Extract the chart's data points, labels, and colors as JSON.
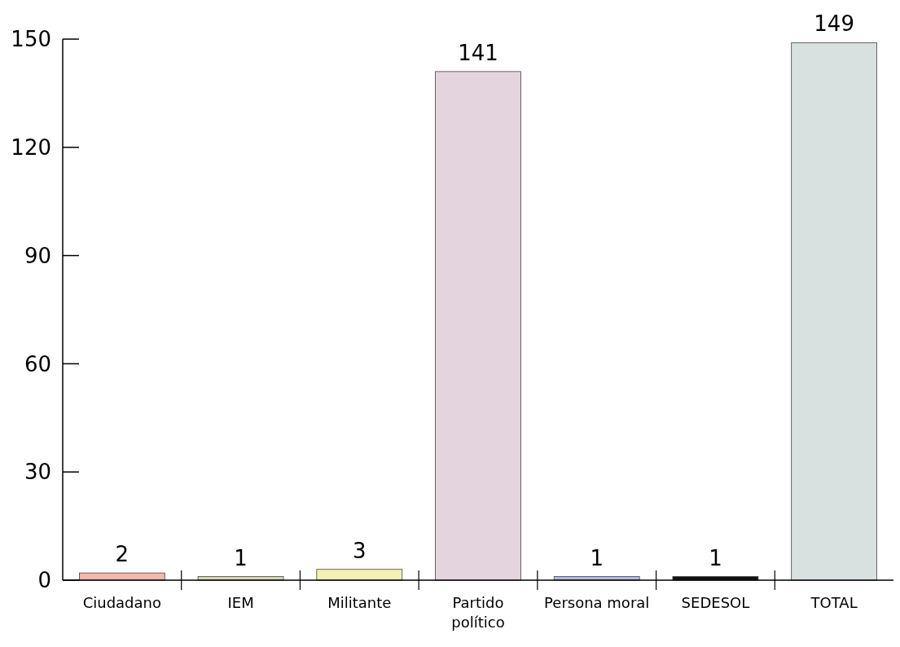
{
  "chart_data": {
    "type": "bar",
    "categories": [
      "Ciudadano",
      "IEM",
      "Militante",
      "Partido político",
      "Persona moral",
      "SEDESOL",
      "TOTAL"
    ],
    "values": [
      2,
      1,
      3,
      141,
      1,
      1,
      149
    ],
    "colors": [
      "#f4b6b0",
      "#d6d4b4",
      "#f2f0b2",
      "#e4d4de",
      "#b0b8e4",
      "#111111",
      "#d8e0e0"
    ],
    "ylim": [
      0,
      150
    ],
    "yticks": [
      0,
      30,
      60,
      90,
      120,
      150
    ],
    "data_labels": true,
    "grid": false
  }
}
